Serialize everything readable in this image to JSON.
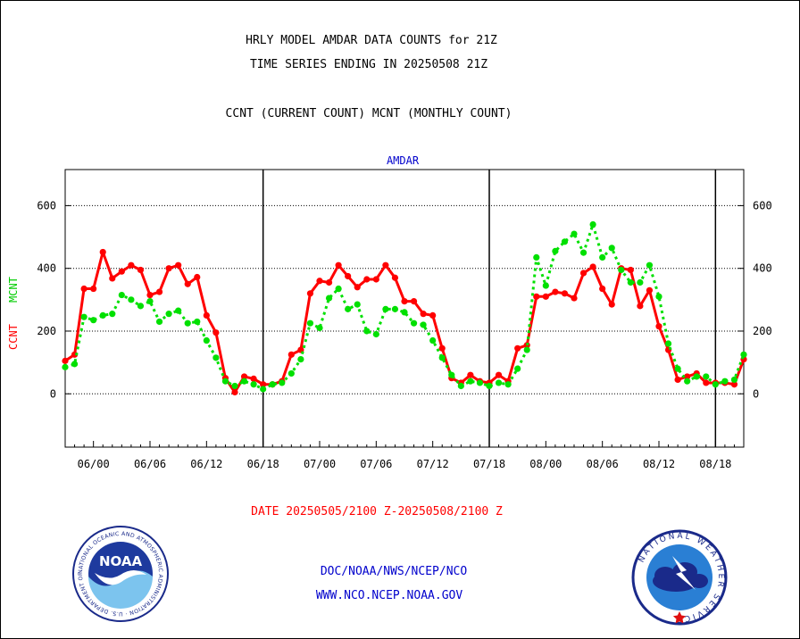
{
  "header": {
    "line1": "HRLY MODEL AMDAR DATA COUNTS for 21Z",
    "line2": "TIME SERIES ENDING IN 20250508 21Z",
    "legend_line": "CCNT (CURRENT COUNT) MCNT (MONTHLY COUNT)"
  },
  "footer": {
    "date_range": "DATE 20250505/2100 Z-20250508/2100 Z",
    "line1": "DOC/NOAA/NWS/NCEP/NCO",
    "line2": "WWW.NCO.NCEP.NOAA.GOV"
  },
  "logos": {
    "noaa_ring_text": "NATIONAL OCEANIC AND ATMOSPHERIC ADMINISTRATION · U.S. DEPARTMENT OF COMMERCE ·",
    "noaa_center": "NOAA",
    "nws_ring_text": "NATIONAL WEATHER SERVICE"
  },
  "colors": {
    "ccnt": "#ff0000",
    "mcnt": "#00e000",
    "title": "#0000cc",
    "footer_date": "#ff0000",
    "footer_links": "#0000cc"
  },
  "chart_data": {
    "type": "line",
    "title": "AMDAR",
    "ylabel_left": [
      "CCNT",
      "MCNT"
    ],
    "ylim": [
      -170,
      715
    ],
    "yticks": [
      0,
      200,
      400,
      600
    ],
    "ytick_labels": [
      "0",
      "200",
      "400",
      "600"
    ],
    "xlim": [
      0,
      72
    ],
    "xticks": [
      3,
      9,
      15,
      21,
      27,
      33,
      39,
      45,
      51,
      57,
      63,
      69
    ],
    "xtick_labels": [
      "06/00",
      "06/06",
      "06/12",
      "06/18",
      "07/00",
      "07/06",
      "07/12",
      "07/18",
      "08/00",
      "08/06",
      "08/12",
      "08/18"
    ],
    "day_boundaries": [
      21,
      45,
      69
    ],
    "grid_y": [
      0,
      200,
      400,
      600
    ],
    "series": [
      {
        "name": "CCNT",
        "style": "solid",
        "values": [
          105,
          125,
          335,
          335,
          452,
          368,
          390,
          410,
          395,
          315,
          325,
          400,
          410,
          350,
          372,
          250,
          195,
          50,
          5,
          55,
          48,
          30,
          30,
          40,
          125,
          140,
          320,
          360,
          355,
          410,
          375,
          340,
          365,
          365,
          410,
          370,
          295,
          295,
          255,
          250,
          145,
          50,
          35,
          60,
          40,
          35,
          60,
          40,
          145,
          155,
          310,
          310,
          325,
          320,
          305,
          385,
          405,
          335,
          285,
          400,
          395,
          280,
          330,
          215,
          140,
          45,
          55,
          65,
          35,
          35,
          35,
          30,
          110
        ]
      },
      {
        "name": "MCNT",
        "style": "dotted",
        "values": [
          85,
          95,
          245,
          235,
          250,
          255,
          315,
          300,
          280,
          295,
          230,
          255,
          265,
          225,
          230,
          170,
          115,
          40,
          25,
          40,
          30,
          15,
          30,
          35,
          65,
          110,
          225,
          210,
          305,
          335,
          270,
          285,
          200,
          190,
          270,
          270,
          260,
          225,
          220,
          170,
          115,
          60,
          25,
          40,
          35,
          25,
          35,
          30,
          80,
          140,
          435,
          345,
          455,
          485,
          510,
          450,
          540,
          435,
          465,
          395,
          355,
          355,
          410,
          310,
          160,
          80,
          40,
          55,
          55,
          30,
          40,
          45,
          125
        ]
      }
    ]
  }
}
